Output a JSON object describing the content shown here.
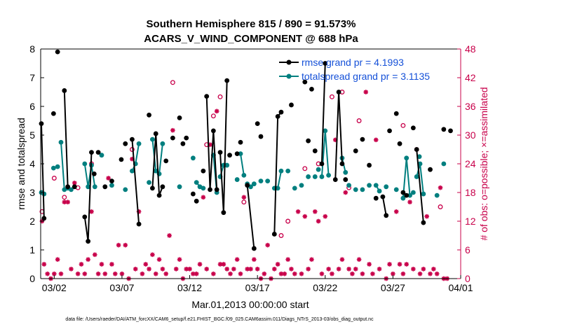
{
  "chart_data": {
    "type": "line",
    "title": [
      "Southern Hemisphere 815 / 890 = 91.573%",
      "ACARS_V_WIND_COMPONENT @ 688 hPa"
    ],
    "xlabel": "Mar.01,2013 00:00:00 start",
    "ylabel": "rmse and totalspread",
    "ylabel_right": "# of obs: o=possible; ×=assimilated",
    "x_tick_labels": [
      "03/02",
      "03/07",
      "03/12",
      "03/17",
      "03/22",
      "03/27",
      "04/01"
    ],
    "x_tick_days": [
      1,
      6,
      11,
      16,
      21,
      26,
      31
    ],
    "xlim_days": [
      0,
      31
    ],
    "ylim": [
      0,
      8
    ],
    "y_ticks": [
      0,
      1,
      2,
      3,
      4,
      5,
      6,
      7,
      8
    ],
    "ylim_right": [
      0,
      48
    ],
    "y_ticks_right": [
      0,
      6,
      12,
      18,
      24,
      30,
      36,
      42,
      48
    ],
    "grid": false,
    "legend_placement": "top-right",
    "colors": {
      "rmse": "#000000",
      "spread": "#007f7f",
      "obs": "#c8004a",
      "legend_text": "#1450d8"
    },
    "series": [
      {
        "name": "rmse grand pr = 4.1993",
        "color": "#000000",
        "segments": [
          [
            [
              0.05,
              5.4
            ],
            [
              0.25,
              2.1
            ]
          ],
          [
            [
              1.25,
              7.9
            ]
          ],
          [
            [
              1.75,
              6.55
            ],
            [
              2.0,
              3.2
            ]
          ],
          [
            [
              3.25,
              2.15
            ],
            [
              3.5,
              1.3
            ],
            [
              3.75,
              4.4
            ]
          ],
          [
            [
              4.75,
              3.2
            ]
          ],
          [
            [
              6.75,
              4.85
            ],
            [
              7.25,
              1.9
            ]
          ],
          [
            [
              8.25,
              3.15
            ],
            [
              8.5,
              5.05
            ],
            [
              8.75,
              2.9
            ],
            [
              9.0,
              3.2
            ]
          ],
          [
            [
              9.25,
              4.1
            ]
          ],
          [
            [
              10.75,
              4.9
            ]
          ],
          [
            [
              11.5,
              2.7
            ]
          ],
          [
            [
              12.25,
              6.35
            ],
            [
              12.5,
              3.1
            ],
            [
              12.75,
              5.15
            ],
            [
              13.0,
              3.1
            ]
          ],
          [
            [
              13.25,
              4.4
            ],
            [
              13.5,
              2.3
            ],
            [
              13.75,
              6.9
            ]
          ],
          [
            [
              15.25,
              3.25
            ],
            [
              15.75,
              1.05
            ]
          ],
          [
            [
              17.25,
              1.55
            ],
            [
              17.5,
              5.65
            ],
            [
              17.75,
              5.8
            ]
          ],
          [
            [
              20.75,
              4.0
            ],
            [
              21.0,
              7.5
            ]
          ],
          [
            [
              21.75,
              3.45
            ],
            [
              22.0,
              6.5
            ],
            [
              22.25,
              4.0
            ]
          ],
          [
            [
              25.25,
              2.85
            ],
            [
              25.5,
              2.2
            ]
          ],
          [
            [
              26.75,
              3.0
            ],
            [
              27.0,
              2.9
            ]
          ],
          [
            [
              27.75,
              4.5
            ],
            [
              28.25,
              1.95
            ]
          ]
        ],
        "singles": [
          [
            0.95,
            5.75
          ],
          [
            2.5,
            3.2
          ],
          [
            3.95,
            3.65
          ],
          [
            4.25,
            4.4
          ],
          [
            5.25,
            3.4
          ],
          [
            5.95,
            4.15
          ],
          [
            6.25,
            4.7
          ],
          [
            8.0,
            5.7
          ],
          [
            9.75,
            4.9
          ],
          [
            10.25,
            5.6
          ],
          [
            10.5,
            4.7
          ],
          [
            11.25,
            2.95
          ],
          [
            12.0,
            3.75
          ],
          [
            13.95,
            4.3
          ],
          [
            14.5,
            4.35
          ],
          [
            14.75,
            4.75
          ],
          [
            16.0,
            5.4
          ],
          [
            16.25,
            4.95
          ],
          [
            18.5,
            6.05
          ],
          [
            19.5,
            6.85
          ],
          [
            19.75,
            4.8
          ],
          [
            20.0,
            6.6
          ],
          [
            20.25,
            4.45
          ],
          [
            22.5,
            3.45
          ],
          [
            23.25,
            4.45
          ],
          [
            23.75,
            4.85
          ],
          [
            24.25,
            3.95
          ],
          [
            24.75,
            2.8
          ],
          [
            25.75,
            5.15
          ],
          [
            26.25,
            5.75
          ],
          [
            26.5,
            4.7
          ],
          [
            27.5,
            5.25
          ],
          [
            28.75,
            3.8
          ],
          [
            29.75,
            5.2
          ],
          [
            30.25,
            5.15
          ]
        ]
      },
      {
        "name": "totalspread grand pr = 3.1135",
        "color": "#007f7f",
        "segments": [
          [
            [
              0.05,
              3.0
            ],
            [
              0.25,
              2.95
            ]
          ],
          [
            [
              1.5,
              4.75
            ],
            [
              1.75,
              3.1
            ],
            [
              2.0,
              3.15
            ]
          ],
          [
            [
              3.25,
              4.0
            ],
            [
              3.5,
              3.2
            ],
            [
              3.75,
              3.95
            ],
            [
              4.0,
              3.2
            ]
          ],
          [
            [
              6.75,
              3.75
            ],
            [
              7.0,
              4.0
            ],
            [
              7.25,
              4.7
            ]
          ],
          [
            [
              8.25,
              4.85
            ],
            [
              8.5,
              3.75
            ],
            [
              8.75,
              3.65
            ],
            [
              9.0,
              4.7
            ]
          ],
          [
            [
              11.5,
              3.35
            ],
            [
              11.75,
              3.2
            ],
            [
              12.0,
              3.15
            ]
          ],
          [
            [
              12.75,
              4.3
            ],
            [
              13.0,
              3.0
            ]
          ],
          [
            [
              13.25,
              3.55
            ],
            [
              13.5,
              3.95
            ],
            [
              13.75,
              3.95
            ]
          ],
          [
            [
              14.75,
              4.35
            ],
            [
              15.0,
              3.6
            ]
          ],
          [
            [
              15.25,
              3.3
            ],
            [
              15.5,
              3.2
            ]
          ],
          [
            [
              17.25,
              3.15
            ],
            [
              17.5,
              3.15
            ],
            [
              17.75,
              3.75
            ]
          ],
          [
            [
              20.75,
              3.55
            ],
            [
              21.0,
              5.15
            ],
            [
              21.25,
              3.6
            ]
          ],
          [
            [
              22.25,
              4.2
            ],
            [
              22.5,
              3.7
            ]
          ],
          [
            [
              24.75,
              3.25
            ],
            [
              25.0,
              3.05
            ]
          ],
          [
            [
              26.75,
              2.8
            ],
            [
              27.0,
              4.2
            ],
            [
              27.25,
              2.9
            ],
            [
              27.5,
              3.0
            ]
          ],
          [
            [
              27.75,
              3.55
            ],
            [
              28.0,
              4.0
            ],
            [
              28.25,
              2.95
            ]
          ]
        ],
        "singles": [
          [
            0.95,
            3.85
          ],
          [
            1.25,
            3.9
          ],
          [
            2.25,
            3.1
          ],
          [
            4.5,
            4.3
          ],
          [
            5.25,
            3.25
          ],
          [
            6.25,
            3.1
          ],
          [
            8.0,
            3.35
          ],
          [
            10.25,
            3.2
          ],
          [
            11.25,
            4.2
          ],
          [
            14.5,
            3.45
          ],
          [
            15.75,
            3.3
          ],
          [
            16.25,
            3.4
          ],
          [
            16.75,
            3.4
          ],
          [
            18.25,
            3.75
          ],
          [
            18.75,
            3.15
          ],
          [
            19.25,
            3.25
          ],
          [
            19.75,
            3.55
          ],
          [
            20.25,
            3.55
          ],
          [
            20.5,
            3.8
          ],
          [
            22.75,
            3.25
          ],
          [
            23.25,
            3.1
          ],
          [
            23.75,
            3.1
          ],
          [
            24.25,
            3.25
          ],
          [
            25.5,
            3.2
          ],
          [
            26.25,
            3.1
          ],
          [
            27.95,
            4.25
          ],
          [
            29.25,
            2.9
          ],
          [
            29.75,
            4.0
          ]
        ]
      }
    ],
    "obs_possible": [
      [
        0.1,
        14
      ],
      [
        1.0,
        21
      ],
      [
        1.75,
        17
      ],
      [
        2.75,
        19
      ],
      [
        3.75,
        24
      ],
      [
        6.75,
        27
      ],
      [
        9.75,
        41
      ],
      [
        12.25,
        28
      ],
      [
        12.75,
        34
      ],
      [
        13.25,
        38
      ],
      [
        15.0,
        16
      ],
      [
        17.75,
        9
      ],
      [
        18.25,
        12
      ],
      [
        19.5,
        23
      ],
      [
        20.5,
        24
      ],
      [
        21.5,
        38
      ],
      [
        22.25,
        39
      ],
      [
        22.75,
        19
      ],
      [
        23.5,
        33
      ],
      [
        26.75,
        32
      ],
      [
        29.5,
        15
      ]
    ],
    "obs_assimilated": [
      [
        0.1,
        12
      ],
      [
        0.25,
        3
      ],
      [
        0.5,
        1
      ],
      [
        0.75,
        0
      ],
      [
        1.0,
        1
      ],
      [
        1.25,
        4
      ],
      [
        1.5,
        1
      ],
      [
        1.75,
        16
      ],
      [
        2.0,
        16
      ],
      [
        2.25,
        2
      ],
      [
        2.5,
        20
      ],
      [
        2.75,
        1
      ],
      [
        3.0,
        3
      ],
      [
        3.25,
        1
      ],
      [
        3.5,
        4
      ],
      [
        3.75,
        14
      ],
      [
        4.0,
        5
      ],
      [
        4.25,
        1
      ],
      [
        4.5,
        3
      ],
      [
        4.75,
        1
      ],
      [
        5.0,
        21
      ],
      [
        5.25,
        3
      ],
      [
        5.5,
        1
      ],
      [
        5.75,
        7
      ],
      [
        6.0,
        1
      ],
      [
        6.25,
        7
      ],
      [
        6.5,
        0
      ],
      [
        6.75,
        25
      ],
      [
        7.0,
        2
      ],
      [
        7.25,
        14
      ],
      [
        7.5,
        1
      ],
      [
        7.75,
        3
      ],
      [
        8.0,
        2
      ],
      [
        8.25,
        5
      ],
      [
        8.5,
        1
      ],
      [
        8.75,
        4
      ],
      [
        9.0,
        2
      ],
      [
        9.25,
        1
      ],
      [
        9.5,
        9
      ],
      [
        9.75,
        31
      ],
      [
        10.0,
        2
      ],
      [
        10.25,
        4
      ],
      [
        10.5,
        0
      ],
      [
        10.75,
        2
      ],
      [
        11.0,
        2
      ],
      [
        11.25,
        1
      ],
      [
        11.5,
        1
      ],
      [
        11.75,
        3
      ],
      [
        12.0,
        17
      ],
      [
        12.25,
        2
      ],
      [
        12.5,
        28
      ],
      [
        12.75,
        1
      ],
      [
        13.0,
        35
      ],
      [
        13.25,
        3
      ],
      [
        13.5,
        3
      ],
      [
        13.75,
        2
      ],
      [
        14.0,
        1
      ],
      [
        14.25,
        2
      ],
      [
        14.5,
        4
      ],
      [
        14.75,
        1
      ],
      [
        15.0,
        17
      ],
      [
        15.25,
        2
      ],
      [
        15.5,
        2
      ],
      [
        15.75,
        4
      ],
      [
        16.0,
        2
      ],
      [
        16.25,
        0
      ],
      [
        16.5,
        1
      ],
      [
        16.75,
        7
      ],
      [
        17.0,
        0
      ],
      [
        17.25,
        2
      ],
      [
        17.5,
        3
      ],
      [
        17.75,
        1
      ],
      [
        18.0,
        1
      ],
      [
        18.25,
        4
      ],
      [
        18.5,
        2
      ],
      [
        18.75,
        1
      ],
      [
        19.0,
        14
      ],
      [
        19.25,
        1
      ],
      [
        19.5,
        13
      ],
      [
        19.75,
        2
      ],
      [
        20.0,
        4
      ],
      [
        20.25,
        14
      ],
      [
        20.5,
        12
      ],
      [
        20.75,
        1
      ],
      [
        21.0,
        13
      ],
      [
        21.25,
        2
      ],
      [
        21.5,
        1
      ],
      [
        21.75,
        29
      ],
      [
        22.0,
        2
      ],
      [
        22.25,
        4
      ],
      [
        22.5,
        18
      ],
      [
        22.75,
        2
      ],
      [
        23.0,
        1
      ],
      [
        23.25,
        2
      ],
      [
        23.5,
        4
      ],
      [
        23.75,
        1
      ],
      [
        24.0,
        39
      ],
      [
        24.25,
        3
      ],
      [
        24.5,
        1
      ],
      [
        24.75,
        29
      ],
      [
        25.0,
        2
      ],
      [
        25.5,
        0
      ],
      [
        25.75,
        3
      ],
      [
        26.0,
        1
      ],
      [
        26.25,
        14
      ],
      [
        26.5,
        3
      ],
      [
        26.75,
        1
      ],
      [
        27.0,
        3
      ],
      [
        27.25,
        16
      ],
      [
        27.5,
        2
      ],
      [
        27.75,
        27
      ],
      [
        28.0,
        1
      ],
      [
        28.25,
        2
      ],
      [
        28.5,
        13
      ],
      [
        28.75,
        1
      ],
      [
        29.0,
        2
      ],
      [
        29.25,
        1
      ],
      [
        29.5,
        19
      ],
      [
        29.75,
        0
      ],
      [
        30.0,
        0
      ]
    ]
  },
  "footer": "data file: /Users/raeder/DAI/ATM_forcXX/CAM6_setup/f.e21.FHIST_BGC.f09_025.CAM6assim.011/Diags_NTrS_2013-03/obs_diag_output.nc"
}
